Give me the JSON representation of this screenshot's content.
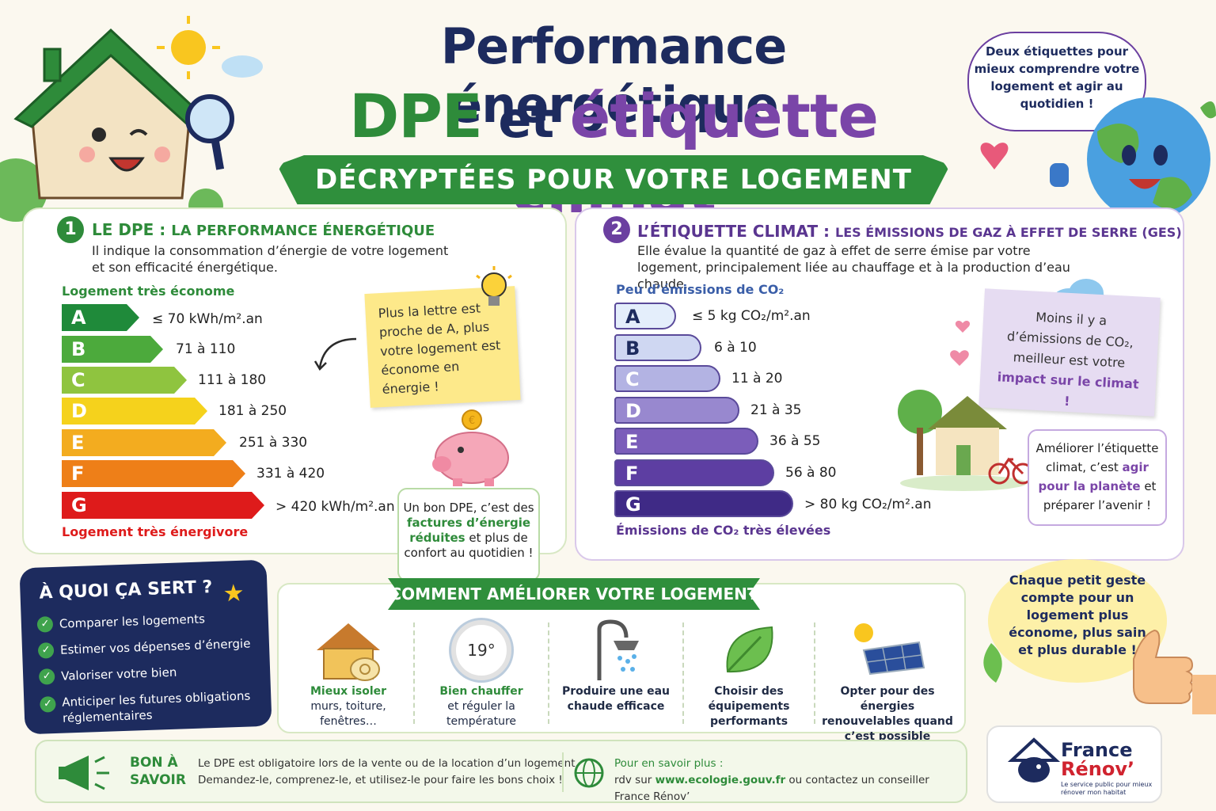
{
  "header": {
    "title_line1": "Performance énergétique",
    "title_dpe": "DPE",
    "title_et": " et ",
    "title_climat": "étiquette climat",
    "ribbon": "DÉCRYPTÉES POUR VOTRE LOGEMENT",
    "bubble": "Deux étiquettes pour mieux comprendre votre logement et agir au quotidien !"
  },
  "dpe": {
    "number": "1",
    "title_main": "LE DPE :",
    "title_rest": "LA PERFORMANCE ÉNERGÉTIQUE",
    "desc": "Il indique la consommation d’énergie de votre logement et son efficacité énergétique.",
    "top_label": "Logement très économe",
    "bottom_label": "Logement très énergivore",
    "rows": [
      {
        "letter": "A",
        "range": "≤ 70 kWh/m².an",
        "color": "#1f8a3a"
      },
      {
        "letter": "B",
        "range": "71 à 110",
        "color": "#4caa3c"
      },
      {
        "letter": "C",
        "range": "111 à 180",
        "color": "#8fc43f"
      },
      {
        "letter": "D",
        "range": "181 à 250",
        "color": "#f5d21c"
      },
      {
        "letter": "E",
        "range": "251 à 330",
        "color": "#f3ac1f"
      },
      {
        "letter": "F",
        "range": "331 à 420",
        "color": "#ee7f18"
      },
      {
        "letter": "G",
        "range": "> 420 kWh/m².an",
        "color": "#de1b1b"
      }
    ],
    "sticky": "Plus la lettre est proche de A, plus votre logement est économe en énergie !",
    "box_pre": "Un bon DPE, c’est des ",
    "box_hl": "factures d’énergie réduites",
    "box_post": " et plus de confort au quotidien !"
  },
  "climat": {
    "number": "2",
    "title_main": "L’ÉTIQUETTE CLIMAT :",
    "title_rest": "LES ÉMISSIONS DE GAZ À EFFET DE SERRE (GES)",
    "desc": "Elle évalue la quantité de gaz à effet de serre émise par votre logement, principalement liée au chauffage et à la production d’eau chaude.",
    "top_label": "Peu d’émissions de CO₂",
    "bottom_label": "Émissions de CO₂ très élevées",
    "rows": [
      {
        "letter": "A",
        "range": "≤ 5 kg CO₂/m².an",
        "color": "#e4eefb"
      },
      {
        "letter": "B",
        "range": "6 à 10",
        "color": "#cfd7f2"
      },
      {
        "letter": "C",
        "range": "11 à 20",
        "color": "#b3b3e3"
      },
      {
        "letter": "D",
        "range": "21 à 35",
        "color": "#9888cf"
      },
      {
        "letter": "E",
        "range": "36 à 55",
        "color": "#7b5dba"
      },
      {
        "letter": "F",
        "range": "56 à 80",
        "color": "#5d3ea2"
      },
      {
        "letter": "G",
        "range": "> 80 kg CO₂/m².an",
        "color": "#3f2a86"
      }
    ],
    "sticky_pre": "Moins il y a d’émissions de CO₂, meilleur est votre ",
    "sticky_hl": "impact sur le climat !",
    "box_pre": "Améliorer l’étiquette climat, c’est ",
    "box_hl": "agir pour la planète",
    "box_post": " et préparer l’avenir !"
  },
  "usage": {
    "title": "À QUOI ÇA SERT ?",
    "items": [
      "Comparer les logements",
      "Estimer vos dépenses d’énergie",
      "Valoriser votre bien",
      "Anticiper les futures obligations réglementaires"
    ]
  },
  "ameliorer": {
    "title": "COMMENT AMÉLIORER VOTRE LOGEMENT ?",
    "thermostat": "19°",
    "tips": [
      {
        "title": "Mieux isoler",
        "sub": "murs, toiture, fenêtres…",
        "green": true
      },
      {
        "title": "Bien chauffer",
        "sub": "et réguler la température",
        "green": true
      },
      {
        "title": "Produire une eau chaude efficace",
        "sub": "",
        "green": false
      },
      {
        "title": "Choisir des équipements performants",
        "sub": "",
        "green": false
      },
      {
        "title": "Opter pour des énergies renouvelables quand c’est possible",
        "sub": "",
        "green": false
      }
    ]
  },
  "geste": "Chaque petit geste compte pour un logement plus économe, plus sain et plus durable !",
  "footer": {
    "bon_a_savoir": "BON À SAVOIR",
    "line1": "Le DPE est obligatoire lors de la vente ou de la location d’un logement.",
    "line2": "Demandez-le, comprenez-le, et utilisez-le pour faire les bons choix !",
    "plus": "Pour en savoir plus :",
    "rdv_pre": "rdv sur ",
    "link": "www.ecologie.gouv.fr",
    "rdv_post": " ou contactez un conseiller France Rénov’"
  },
  "brand": {
    "name1": "France",
    "name2": "Rénov’",
    "tagline": "Le service public pour mieux rénover mon habitat"
  }
}
